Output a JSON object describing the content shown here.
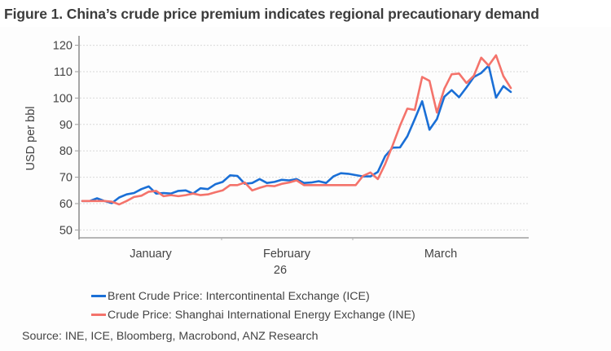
{
  "title": "Figure 1. China’s crude price premium indicates regional precautionary demand",
  "source": "Source: INE, ICE, Bloomberg, Macrobond, ANZ Research",
  "chart_data": {
    "type": "line",
    "title": "Figure 1. China’s crude price premium indicates regional precautionary demand",
    "xlabel": "",
    "ylabel": "USD per bbl",
    "ylim": [
      48,
      122
    ],
    "yticks": [
      50,
      60,
      70,
      80,
      90,
      100,
      110,
      120
    ],
    "ytick_labels": [
      "50",
      "60",
      "70",
      "80",
      "90",
      "100",
      "110",
      "120"
    ],
    "x_month_labels": [
      "January",
      "February",
      "March"
    ],
    "x_year_label": "26",
    "grid": true,
    "legend_position": "bottom-left",
    "series": [
      {
        "name": "Brent Crude Price: Intercontinental Exchange (ICE)",
        "color": "#1a6fd6",
        "values": [
          61,
          61,
          62,
          61,
          60.2,
          62.3,
          63.5,
          64,
          65.5,
          66.5,
          63.8,
          64,
          63.8,
          64.8,
          65,
          63.8,
          65.8,
          65.5,
          67.3,
          68.2,
          70.7,
          70.5,
          67.5,
          67.8,
          69.3,
          67.8,
          68.2,
          69,
          68.8,
          69.3,
          67.8,
          68,
          68.5,
          67.8,
          70.3,
          71.5,
          71.3,
          70.8,
          70.3,
          70.3,
          72,
          78,
          81.2,
          81.3,
          85.5,
          92,
          98.8,
          88,
          92,
          100.5,
          103,
          100.3,
          104,
          108,
          109.5,
          112.3,
          100.2,
          104.5,
          102.3
        ]
      },
      {
        "name": "Crude Price: Shanghai International Energy Exchange (INE)",
        "color": "#f4736b",
        "values": [
          61,
          61,
          61,
          61,
          60.7,
          59.7,
          61,
          62.5,
          63,
          64.5,
          64.8,
          62.8,
          63.2,
          62.8,
          63.2,
          63.8,
          63.2,
          63.5,
          64.3,
          65,
          67,
          67,
          68,
          65,
          66,
          66.8,
          66.6,
          67.5,
          68,
          68.8,
          67,
          67,
          67,
          67,
          67,
          67,
          67,
          67,
          70.5,
          71.8,
          69.3,
          75,
          82,
          89.5,
          96,
          95.5,
          108,
          106.5,
          94.5,
          103.5,
          109,
          109.3,
          105.7,
          108.5,
          115.3,
          112.3,
          116.2,
          108.3,
          103.8
        ]
      }
    ]
  }
}
